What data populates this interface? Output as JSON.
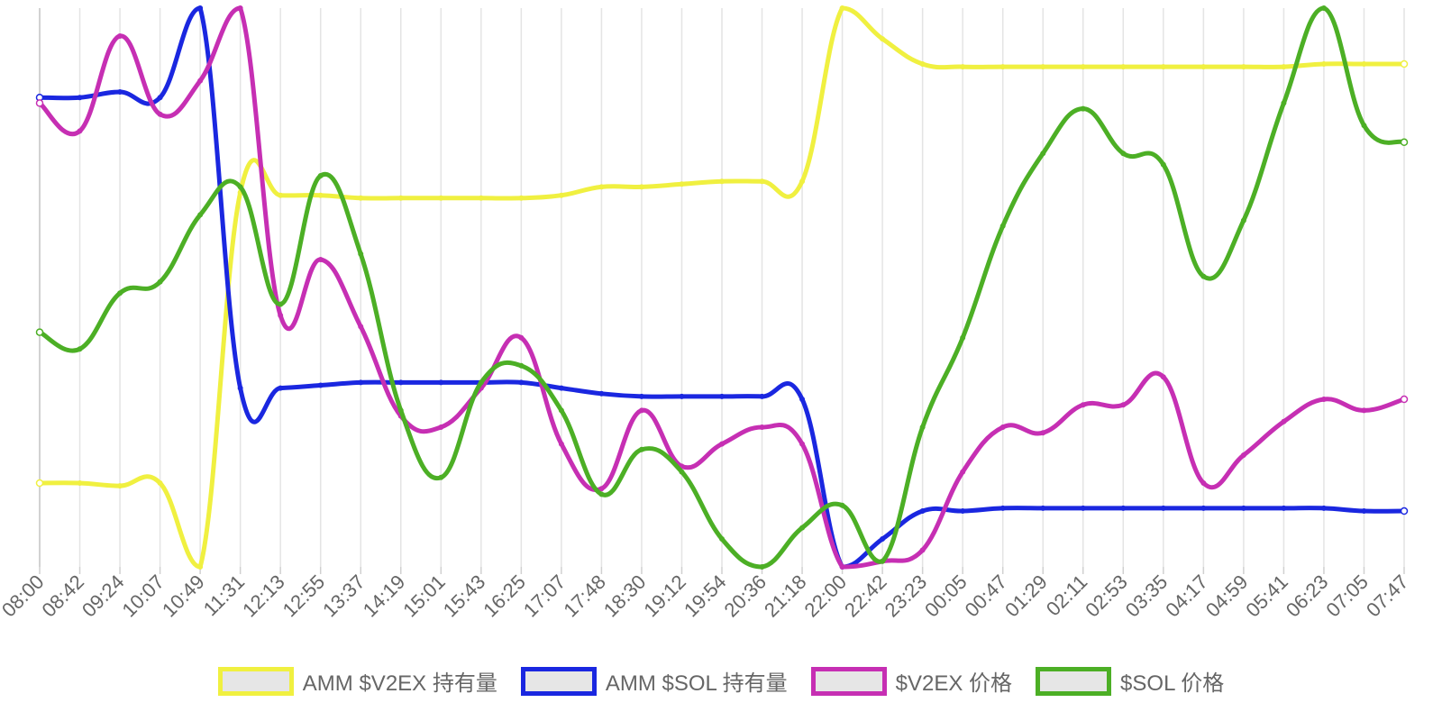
{
  "chart_data": {
    "type": "line",
    "grid": true,
    "legend_position": "bottom",
    "y_axis_labels": "none",
    "categories": [
      "08:00",
      "08:42",
      "09:24",
      "10:07",
      "10:49",
      "11:31",
      "12:13",
      "12:55",
      "13:37",
      "14:19",
      "15:01",
      "15:43",
      "16:25",
      "17:07",
      "17:48",
      "18:30",
      "19:12",
      "19:54",
      "20:36",
      "21:18",
      "22:00",
      "22:42",
      "23:23",
      "00:05",
      "00:47",
      "01:29",
      "02:11",
      "02:53",
      "03:35",
      "04:17",
      "04:59",
      "05:41",
      "06:23",
      "07:05",
      "07:47"
    ],
    "ylim": [
      0,
      100
    ],
    "series": [
      {
        "name": "AMM $V2EX 持有量",
        "color": "#f0f040",
        "values": [
          15,
          15,
          14.5,
          15,
          0,
          67,
          66.5,
          66.5,
          66,
          66,
          66,
          66,
          66,
          66.5,
          68,
          68,
          68.5,
          69,
          69,
          69,
          100,
          94.5,
          90,
          89.5,
          89.5,
          89.5,
          89.5,
          89.5,
          89.5,
          89.5,
          89.5,
          89.5,
          90,
          90,
          90
        ]
      },
      {
        "name": "AMM $SOL 持有量",
        "color": "#1a27e0",
        "values": [
          84,
          84,
          85,
          84,
          100,
          32,
          32,
          32.5,
          33,
          33,
          33,
          33,
          33,
          32,
          31,
          30.5,
          30.5,
          30.5,
          30.5,
          30,
          0,
          5,
          10,
          10,
          10.5,
          10.5,
          10.5,
          10.5,
          10.5,
          10.5,
          10.5,
          10.5,
          10.5,
          10,
          10
        ]
      },
      {
        "name": "$V2EX 价格",
        "color": "#c62fb3",
        "values": [
          83,
          78,
          95,
          81,
          87,
          100,
          45,
          55,
          43,
          27,
          25,
          32,
          41,
          22,
          14,
          28,
          18,
          22,
          25,
          22,
          0,
          1,
          3,
          17,
          25,
          24,
          29,
          29,
          34,
          15,
          20,
          26,
          30,
          28,
          30
        ]
      },
      {
        "name": "$SOL 价格",
        "color": "#4caf25",
        "values": [
          42,
          39,
          49,
          51,
          63,
          68,
          47,
          70,
          56,
          28,
          16,
          33,
          36,
          28,
          13,
          21,
          17,
          5,
          0,
          7,
          11,
          1,
          25,
          41,
          61,
          74,
          82,
          74,
          72,
          52,
          62,
          83,
          100,
          79,
          76
        ]
      }
    ]
  }
}
